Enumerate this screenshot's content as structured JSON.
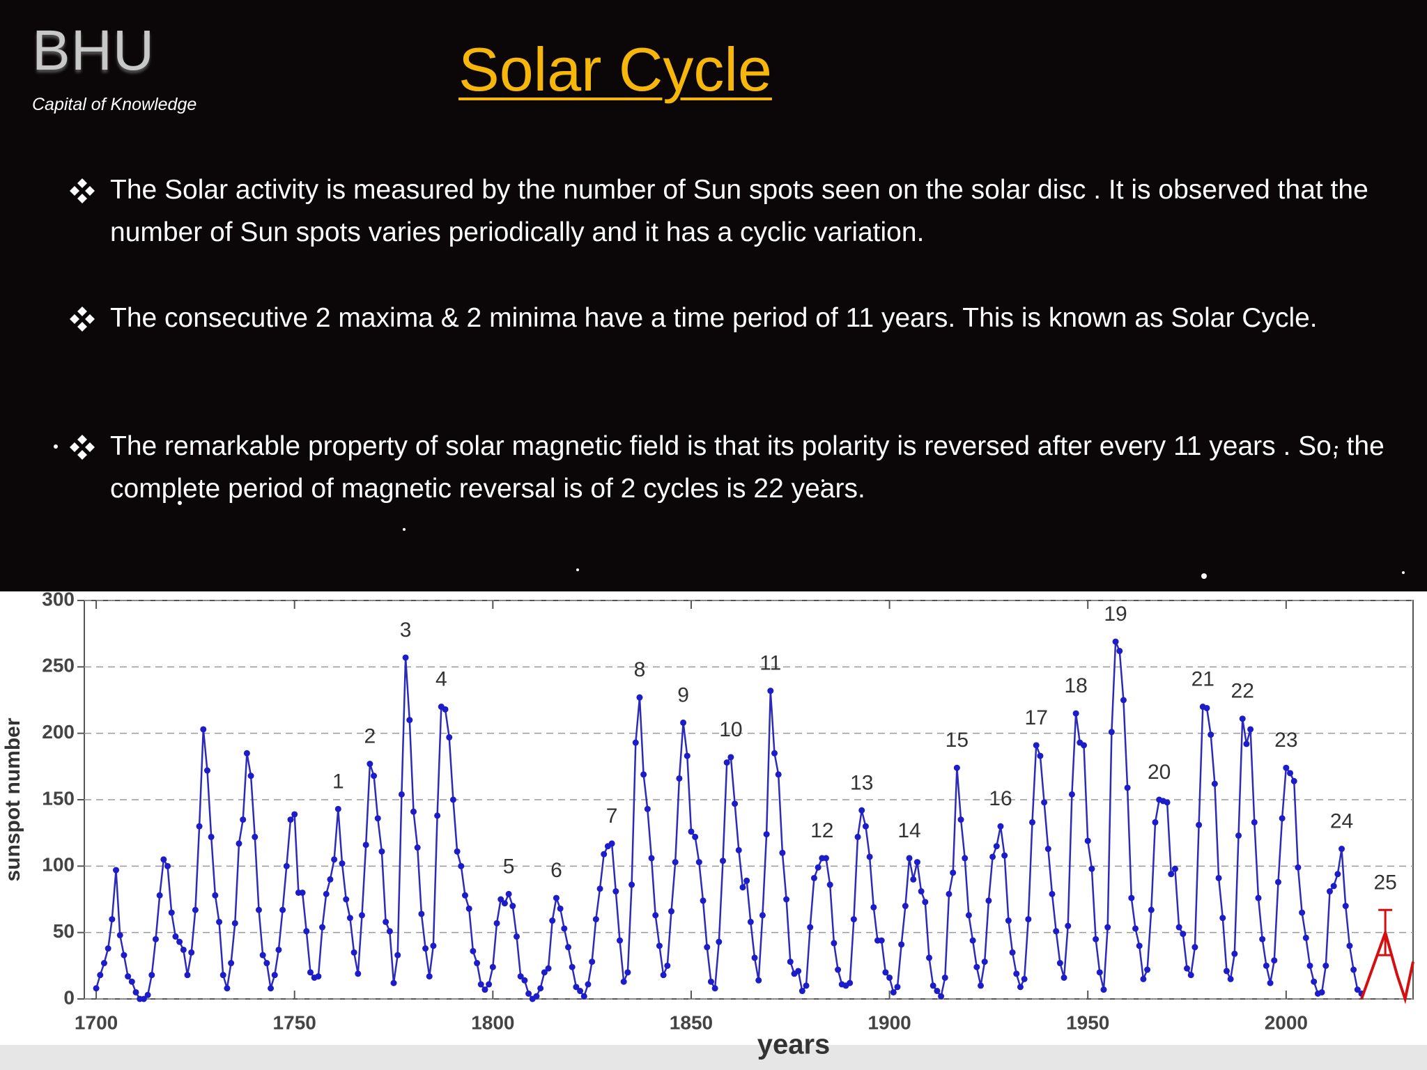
{
  "header": {
    "logo": "BHU",
    "tagline": "Capital of Knowledge",
    "title": "Solar Cycle"
  },
  "bullets": [
    "The Solar activity is measured by the number of Sun spots seen on the solar disc . It is observed that the number of Sun spots varies periodically and it has a cyclic variation.",
    "The consecutive 2 maxima & 2 minima have a time period of 11 years. This is known as Solar Cycle.",
    "The remarkable property of solar magnetic field is that its polarity is reversed after every 11 years . So, the  complete  period  of magnetic reversal is of 2 cycles is 22 years."
  ],
  "chart_data": {
    "type": "line",
    "xlabel": "years",
    "ylabel": "sunspot number",
    "xlim": [
      1697,
      2032
    ],
    "ylim": [
      0,
      300
    ],
    "xticks": [
      1700,
      1750,
      1800,
      1850,
      1900,
      1950,
      2000
    ],
    "yticks": [
      0,
      50,
      100,
      150,
      200,
      250,
      300
    ],
    "grid": true,
    "series": [
      {
        "color": "#2b2bb8",
        "x": [
          1700,
          1701,
          1702,
          1703,
          1704,
          1705,
          1706,
          1707,
          1708,
          1709,
          1710,
          1711,
          1712,
          1713,
          1714,
          1715,
          1716,
          1717,
          1718,
          1719,
          1720,
          1721,
          1722,
          1723,
          1724,
          1725,
          1726,
          1727,
          1728,
          1729,
          1730,
          1731,
          1732,
          1733,
          1734,
          1735,
          1736,
          1737,
          1738,
          1739,
          1740,
          1741,
          1742,
          1743,
          1744,
          1745,
          1746,
          1747,
          1748,
          1749,
          1750,
          1751,
          1752,
          1753,
          1754,
          1755,
          1756,
          1757,
          1758,
          1759,
          1760,
          1761,
          1762,
          1763,
          1764,
          1765,
          1766,
          1767,
          1768,
          1769,
          1770,
          1771,
          1772,
          1773,
          1774,
          1775,
          1776,
          1777,
          1778,
          1779,
          1780,
          1781,
          1782,
          1783,
          1784,
          1785,
          1786,
          1787,
          1788,
          1789,
          1790,
          1791,
          1792,
          1793,
          1794,
          1795,
          1796,
          1797,
          1798,
          1799,
          1800,
          1801,
          1802,
          1803,
          1804,
          1805,
          1806,
          1807,
          1808,
          1809,
          1810,
          1811,
          1812,
          1813,
          1814,
          1815,
          1816,
          1817,
          1818,
          1819,
          1820,
          1821,
          1822,
          1823,
          1824,
          1825,
          1826,
          1827,
          1828,
          1829,
          1830,
          1831,
          1832,
          1833,
          1834,
          1835,
          1836,
          1837,
          1838,
          1839,
          1840,
          1841,
          1842,
          1843,
          1844,
          1845,
          1846,
          1847,
          1848,
          1849,
          1850,
          1851,
          1852,
          1853,
          1854,
          1855,
          1856,
          1857,
          1858,
          1859,
          1860,
          1861,
          1862,
          1863,
          1864,
          1865,
          1866,
          1867,
          1868,
          1869,
          1870,
          1871,
          1872,
          1873,
          1874,
          1875,
          1876,
          1877,
          1878,
          1879,
          1880,
          1881,
          1882,
          1883,
          1884,
          1885,
          1886,
          1887,
          1888,
          1889,
          1890,
          1891,
          1892,
          1893,
          1894,
          1895,
          1896,
          1897,
          1898,
          1899,
          1900,
          1901,
          1902,
          1903,
          1904,
          1905,
          1906,
          1907,
          1908,
          1909,
          1910,
          1911,
          1912,
          1913,
          1914,
          1915,
          1916,
          1917,
          1918,
          1919,
          1920,
          1921,
          1922,
          1923,
          1924,
          1925,
          1926,
          1927,
          1928,
          1929,
          1930,
          1931,
          1932,
          1933,
          1934,
          1935,
          1936,
          1937,
          1938,
          1939,
          1940,
          1941,
          1942,
          1943,
          1944,
          1945,
          1946,
          1947,
          1948,
          1949,
          1950,
          1951,
          1952,
          1953,
          1954,
          1955,
          1956,
          1957,
          1958,
          1959,
          1960,
          1961,
          1962,
          1963,
          1964,
          1965,
          1966,
          1967,
          1968,
          1969,
          1970,
          1971,
          1972,
          1973,
          1974,
          1975,
          1976,
          1977,
          1978,
          1979,
          1980,
          1981,
          1982,
          1983,
          1984,
          1985,
          1986,
          1987,
          1988,
          1989,
          1990,
          1991,
          1992,
          1993,
          1994,
          1995,
          1996,
          1997,
          1998,
          1999,
          2000,
          2001,
          2002,
          2003,
          2004,
          2005,
          2006,
          2007,
          2008,
          2009,
          2010,
          2011,
          2012,
          2013,
          2014,
          2015,
          2016,
          2017,
          2018,
          2019
        ],
        "values": [
          8,
          18,
          27,
          38,
          60,
          97,
          48,
          33,
          17,
          13,
          5,
          0,
          0,
          3,
          18,
          45,
          78,
          105,
          100,
          65,
          47,
          43,
          37,
          18,
          35,
          67,
          130,
          203,
          172,
          122,
          78,
          58,
          18,
          8,
          27,
          57,
          117,
          135,
          185,
          168,
          122,
          67,
          33,
          27,
          8,
          18,
          37,
          67,
          100,
          135,
          139,
          80,
          80,
          51,
          20,
          16,
          17,
          54,
          79,
          90,
          105,
          143,
          102,
          75,
          61,
          35,
          19,
          63,
          116,
          177,
          168,
          136,
          111,
          58,
          51,
          12,
          33,
          154,
          257,
          210,
          141,
          114,
          64,
          38,
          17,
          40,
          138,
          220,
          218,
          197,
          150,
          111,
          100,
          78,
          68,
          36,
          27,
          11,
          7,
          11,
          24,
          57,
          75,
          72,
          79,
          70,
          47,
          17,
          14,
          4,
          0,
          2,
          8,
          20,
          23,
          59,
          76,
          68,
          53,
          39,
          24,
          9,
          6,
          2,
          11,
          28,
          60,
          83,
          109,
          115,
          117,
          81,
          44,
          13,
          20,
          86,
          193,
          227,
          169,
          143,
          106,
          63,
          40,
          18,
          25,
          66,
          103,
          166,
          208,
          183,
          126,
          122,
          103,
          74,
          39,
          13,
          8,
          43,
          104,
          178,
          182,
          147,
          112,
          84,
          89,
          58,
          31,
          14,
          63,
          124,
          232,
          185,
          169,
          110,
          75,
          28,
          19,
          21,
          6,
          10,
          54,
          91,
          99,
          106,
          106,
          86,
          42,
          22,
          11,
          10,
          12,
          60,
          122,
          142,
          130,
          107,
          69,
          44,
          44,
          20,
          16,
          5,
          9,
          41,
          70,
          106,
          90,
          103,
          81,
          73,
          31,
          10,
          6,
          2,
          16,
          79,
          95,
          174,
          135,
          106,
          63,
          44,
          24,
          10,
          28,
          74,
          107,
          115,
          130,
          108,
          59,
          35,
          19,
          9,
          15,
          60,
          133,
          191,
          183,
          148,
          113,
          79,
          51,
          27,
          16,
          55,
          154,
          215,
          193,
          191,
          119,
          98,
          45,
          20,
          7,
          54,
          201,
          269,
          262,
          225,
          159,
          76,
          53,
          40,
          15,
          22,
          67,
          133,
          150,
          149,
          148,
          94,
          98,
          54,
          49,
          23,
          18,
          39,
          131,
          220,
          219,
          199,
          162,
          91,
          61,
          21,
          15,
          34,
          123,
          211,
          192,
          203,
          133,
          76,
          45,
          25,
          12,
          29,
          88,
          136,
          174,
          170,
          164,
          99,
          65,
          46,
          25,
          13,
          4,
          5,
          25,
          81,
          85,
          94,
          113,
          70,
          40,
          22,
          7,
          4
        ]
      },
      {
        "color": "#d40f0f",
        "x": [
          2019,
          2022,
          2025,
          2028,
          2030,
          2032
        ],
        "values": [
          0,
          25,
          50,
          18,
          0,
          28
        ],
        "errors": [
          null,
          null,
          17,
          null,
          null,
          null
        ]
      }
    ],
    "annotations": [
      {
        "label": "1",
        "x": 1761
      },
      {
        "label": "2",
        "x": 1769
      },
      {
        "label": "3",
        "x": 1778
      },
      {
        "label": "4",
        "x": 1787
      },
      {
        "label": "5",
        "x": 1804
      },
      {
        "label": "6",
        "x": 1816
      },
      {
        "label": "7",
        "x": 1830
      },
      {
        "label": "8",
        "x": 1837
      },
      {
        "label": "9",
        "x": 1848
      },
      {
        "label": "10",
        "x": 1860
      },
      {
        "label": "11",
        "x": 1870
      },
      {
        "label": "12",
        "x": 1883
      },
      {
        "label": "13",
        "x": 1893
      },
      {
        "label": "14",
        "x": 1905
      },
      {
        "label": "15",
        "x": 1917
      },
      {
        "label": "16",
        "x": 1928
      },
      {
        "label": "17",
        "x": 1937
      },
      {
        "label": "18",
        "x": 1947
      },
      {
        "label": "19",
        "x": 1957
      },
      {
        "label": "20",
        "x": 1968
      },
      {
        "label": "21",
        "x": 1979
      },
      {
        "label": "22",
        "x": 1989
      },
      {
        "label": "23",
        "x": 2000
      },
      {
        "label": "24",
        "x": 2014
      },
      {
        "label": "25",
        "x": 2025
      }
    ]
  }
}
